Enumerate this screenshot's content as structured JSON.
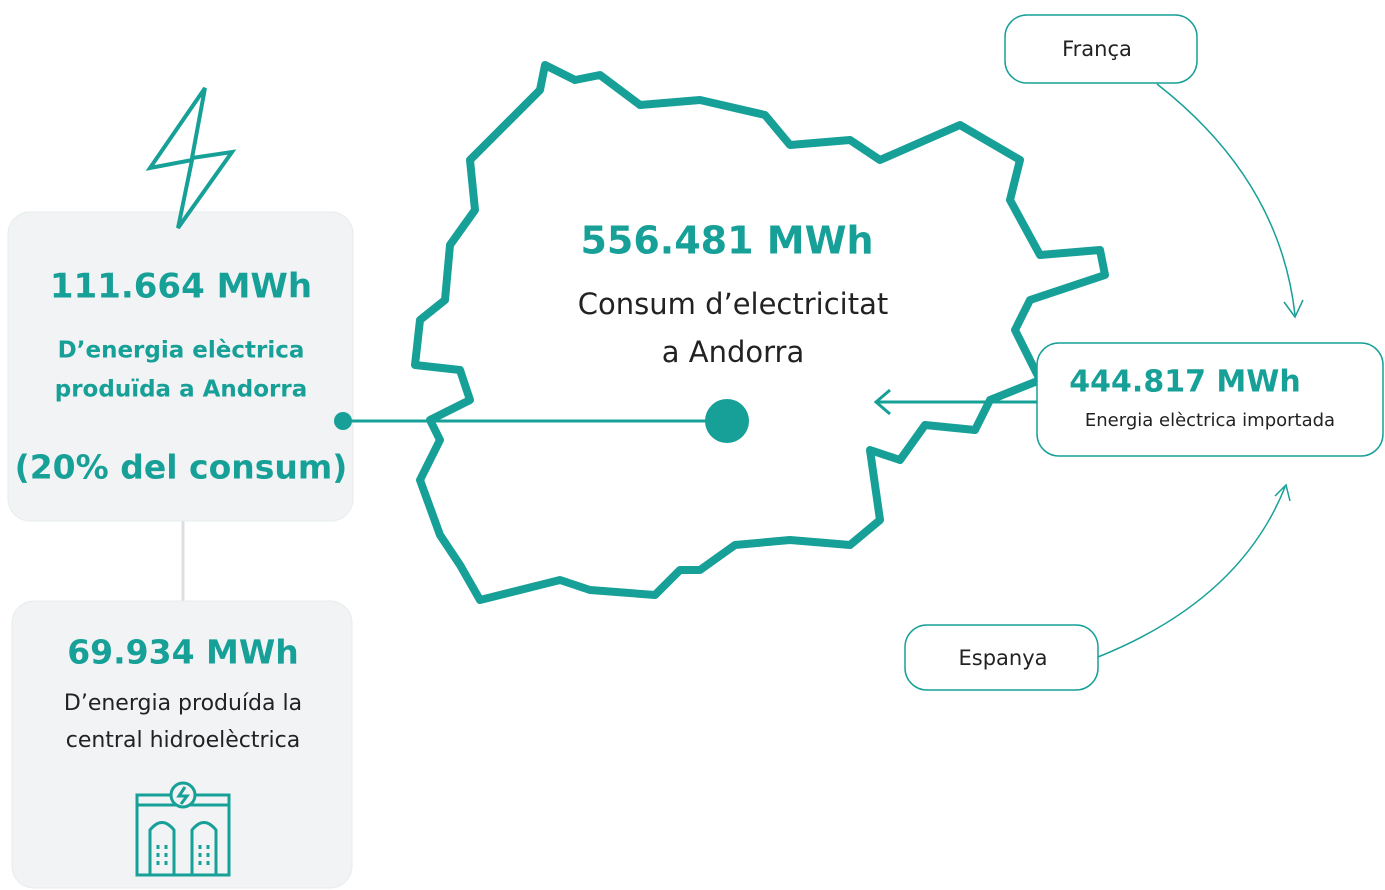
{
  "produced": {
    "value": "111.664 MWh",
    "label_lines": [
      "D’energia elèctrica",
      "produïda a Andorra"
    ],
    "share": "(20% del consum)"
  },
  "hydro": {
    "value": "69.934 MWh",
    "label_lines": [
      "D’energia produída la",
      "central hidroelèctrica"
    ]
  },
  "consumption": {
    "value": "556.481 MWh",
    "label_lines": [
      "Consum d’electricitat",
      "a Andorra"
    ]
  },
  "imported": {
    "value": "444.817 MWh",
    "label": "Energia elèctrica importada"
  },
  "sources": [
    "França",
    "Espanya"
  ]
}
